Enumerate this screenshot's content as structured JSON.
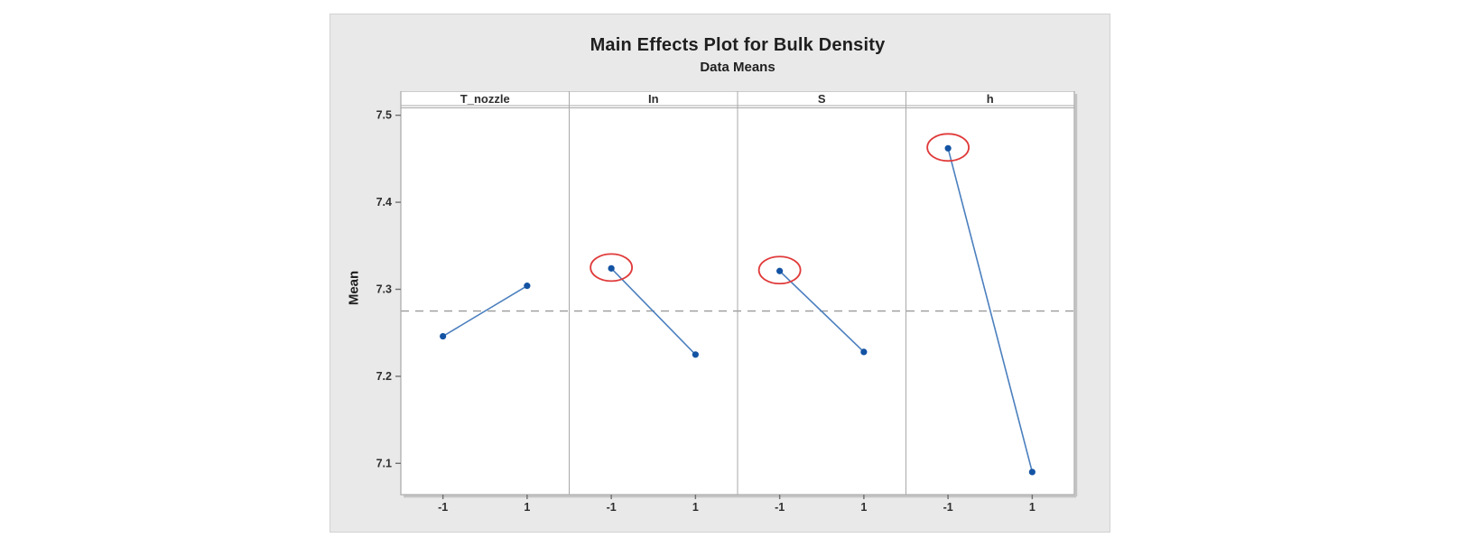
{
  "page": {
    "background": "#ffffff"
  },
  "card": {
    "background": "#e9e9e9",
    "border": "#d2d2d2"
  },
  "chart_data": {
    "type": "line",
    "title": "Main Effects Plot for Bulk Density",
    "subtitle": "Data Means",
    "ylabel": "Mean",
    "xlabel": "",
    "x_levels": [
      "-1",
      "1"
    ],
    "yticks": [
      7.5,
      7.4,
      7.3,
      7.2,
      7.1
    ],
    "ylim": [
      7.064,
      7.509
    ],
    "reference_line_value": 7.275,
    "grid": false,
    "legend_position": "none",
    "panels": [
      {
        "factor": "T_nozzle",
        "means": [
          7.246,
          7.304
        ],
        "circled_level_index": null
      },
      {
        "factor": "In",
        "means": [
          7.324,
          7.225
        ],
        "circled_level_index": 0
      },
      {
        "factor": "S",
        "means": [
          7.321,
          7.228
        ],
        "circled_level_index": 0
      },
      {
        "factor": "h",
        "means": [
          7.462,
          7.09
        ],
        "circled_level_index": 0
      }
    ],
    "colors": {
      "marker": "#1353a3",
      "line": "#4b7fbe",
      "reference_line": "#9a9a9a",
      "highlight_ellipse": "#e03a3a",
      "panel_border": "#a8a8a8",
      "shadow": "#c4c4c4",
      "tick_mark": "#6f6f6f",
      "text": "#2e2e2e"
    }
  }
}
